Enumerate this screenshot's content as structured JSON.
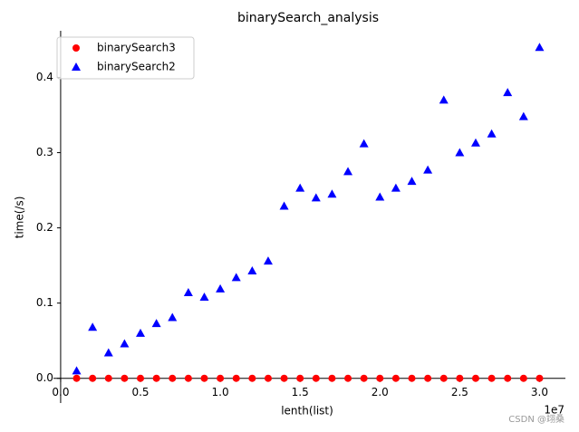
{
  "chart_data": {
    "type": "scatter",
    "title": "binarySearch_analysis",
    "x_label": "lenth(list)",
    "y_label": "time(/s)",
    "x_offset_label": "1e7",
    "watermark": "CSDN @翊桑",
    "x": [
      1000000,
      2000000,
      3000000,
      4000000,
      5000000,
      6000000,
      7000000,
      8000000,
      9000000,
      10000000,
      11000000,
      12000000,
      13000000,
      14000000,
      15000000,
      16000000,
      17000000,
      18000000,
      19000000,
      20000000,
      21000000,
      22000000,
      23000000,
      24000000,
      25000000,
      26000000,
      27000000,
      28000000,
      29000000,
      30000000
    ],
    "series": [
      {
        "name": "binarySearch3",
        "color": "#ff0000",
        "marker": "circle",
        "values": [
          0,
          0,
          0,
          0,
          0,
          0,
          0,
          0,
          0,
          0,
          0,
          0,
          0,
          0,
          0,
          0,
          0,
          0,
          0,
          0,
          0,
          0,
          0,
          0,
          0,
          0,
          0,
          0,
          0,
          0
        ]
      },
      {
        "name": "binarySearch2",
        "color": "#0000ff",
        "marker": "triangle",
        "values": [
          0.01,
          0.068,
          0.034,
          0.046,
          0.06,
          0.073,
          0.081,
          0.114,
          0.108,
          0.119,
          0.134,
          0.143,
          0.156,
          0.229,
          0.253,
          0.24,
          0.245,
          0.275,
          0.312,
          0.241,
          0.253,
          0.262,
          0.277,
          0.37,
          0.3,
          0.313,
          0.325,
          0.38,
          0.348,
          0.44
        ]
      }
    ],
    "xlim": [
      -450000,
      31450000
    ],
    "ylim": [
      -0.022,
      0.462
    ],
    "xticks": [
      {
        "value": 0,
        "label": "0.0"
      },
      {
        "value": 5000000,
        "label": "0.5"
      },
      {
        "value": 10000000,
        "label": "1.0"
      },
      {
        "value": 15000000,
        "label": "1.5"
      },
      {
        "value": 20000000,
        "label": "2.0"
      },
      {
        "value": 25000000,
        "label": "2.5"
      },
      {
        "value": 30000000,
        "label": "3.0"
      }
    ],
    "yticks": [
      {
        "value": 0,
        "label": "0.0"
      },
      0.1,
      0.2,
      0.3,
      0.4
    ],
    "legend": "upper left",
    "grid": false
  }
}
